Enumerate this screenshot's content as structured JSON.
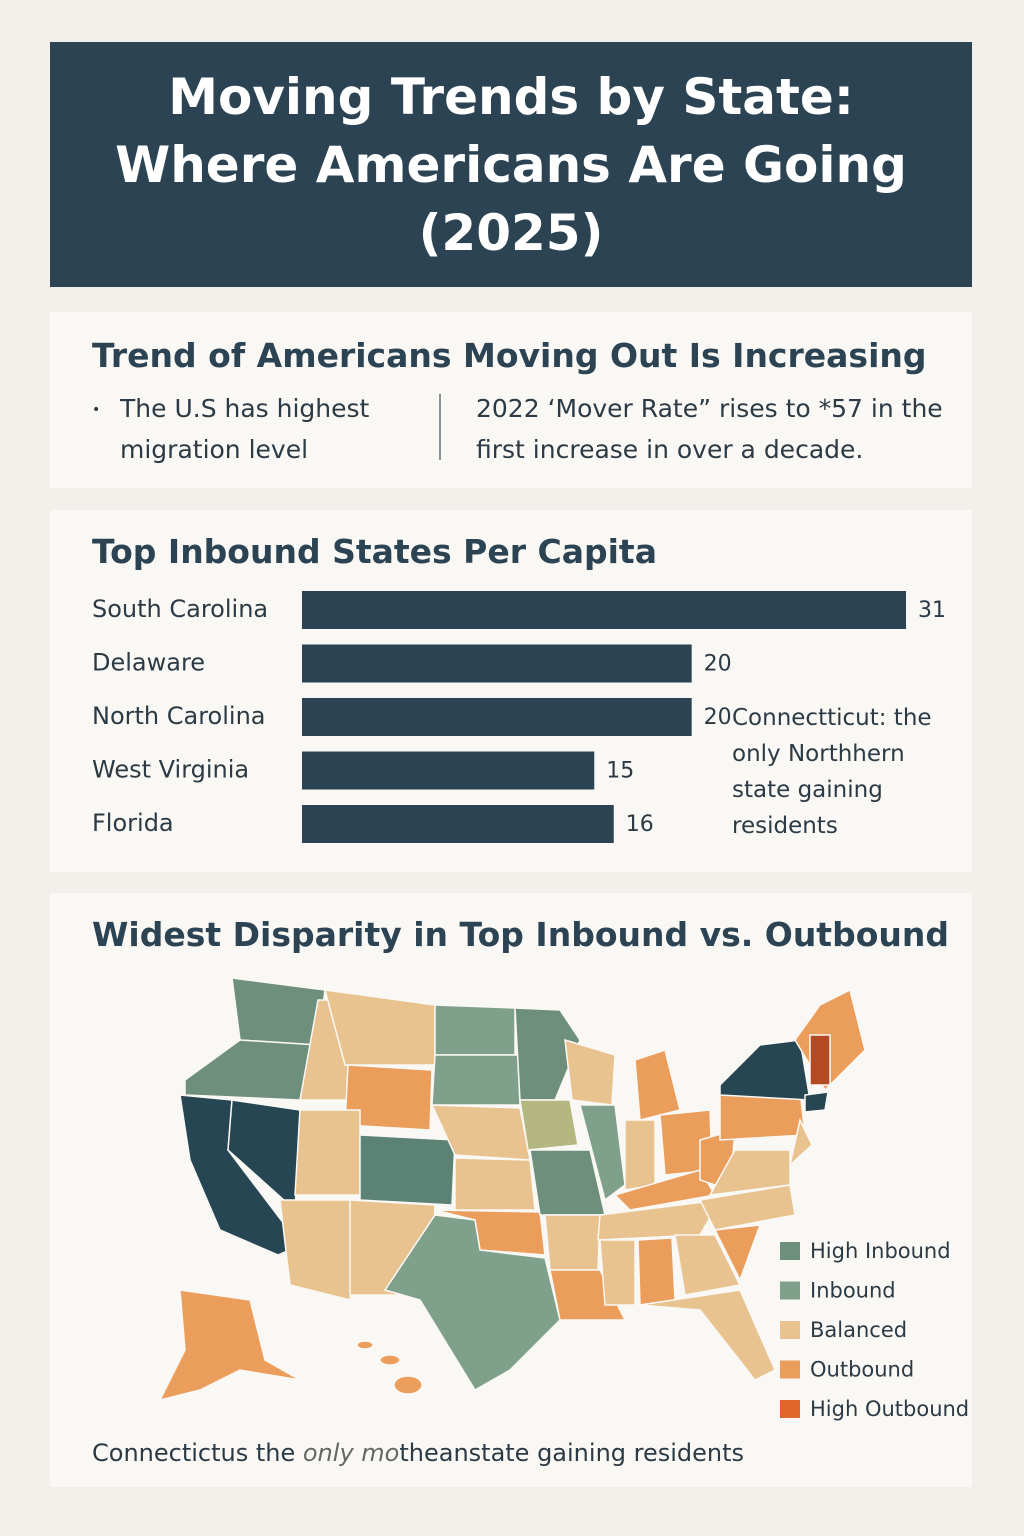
{
  "header": {
    "title": "Moving Trends by State: Where Americans Are Going (2025)"
  },
  "trend": {
    "heading": "Trend of Americans Moving Out Is Increasing",
    "point": "The U.S has highest migration level",
    "note": "2022 ‘Mover Rate” rises to *57 in the first increase in over a decade."
  },
  "chart_data": {
    "type": "bar",
    "title": "Top Inbound States Per Capita",
    "orientation": "horizontal",
    "categories": [
      "South Carolina",
      "Delaware",
      "North Carolina",
      "West Virginia",
      "Florida"
    ],
    "values": [
      31,
      20,
      20,
      15,
      16
    ],
    "color": "#2b4352",
    "annotation": "Connectticut: the only Northhern state gaining residents"
  },
  "map": {
    "title": "Widest Disparity in Top Inbound vs. Outbound",
    "legend": [
      {
        "label": "High Inbound",
        "color": "#6d8f7c"
      },
      {
        "label": "Inbound",
        "color": "#7fa08b"
      },
      {
        "label": "Balanced",
        "color": "#e8c28f"
      },
      {
        "label": "Outbound",
        "color": "#eb9d5c"
      },
      {
        "label": "High Outbound",
        "color": "#e0672c"
      }
    ],
    "footnote": [
      "Connectictus the ",
      "only mo",
      "theanstate gaining residents"
    ]
  }
}
